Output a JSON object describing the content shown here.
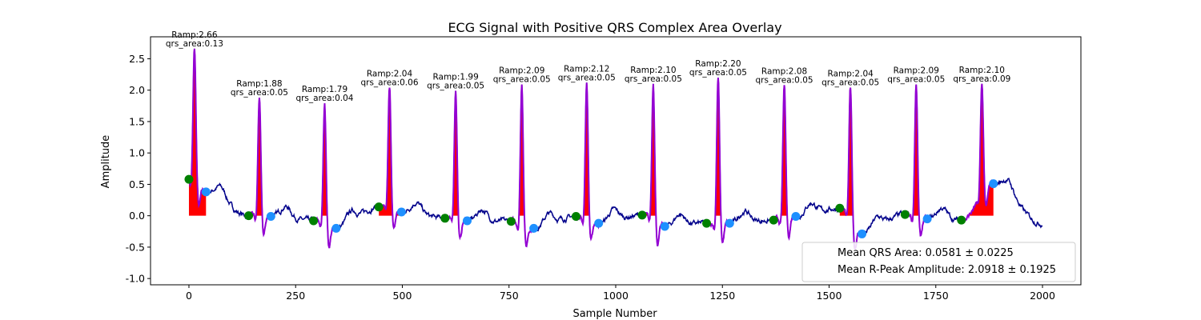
{
  "chart_data": {
    "type": "line",
    "title": "ECG Signal with Positive QRS Complex Area Overlay",
    "xlabel": "Sample Number",
    "ylabel": "Amplitude",
    "xlim": [
      -90,
      2090
    ],
    "ylim": [
      -1.1,
      2.85
    ],
    "xticks": [
      0,
      250,
      500,
      750,
      1000,
      1250,
      1500,
      1750,
      2000
    ],
    "yticks": [
      -1.0,
      -0.5,
      0.0,
      0.5,
      1.0,
      1.5,
      2.0,
      2.5
    ],
    "grid": false,
    "colors": {
      "signal": "#00008b",
      "qrs_segment": "#9400d3",
      "qrs_area": "#ff0000",
      "onset_marker": "#008000",
      "offset_marker": "#1e90ff"
    },
    "beats": [
      {
        "onset": 0,
        "onset_amp": 0.58,
        "peak": 13,
        "ramp": 2.66,
        "offset": 40,
        "offset_amp": 0.38,
        "label": [
          "Ramp:2.66",
          "qrs_area:0.13"
        ]
      },
      {
        "onset": 140,
        "onset_amp": 0.0,
        "peak": 165,
        "ramp": 1.88,
        "offset": 192,
        "offset_amp": -0.01,
        "label": [
          "Ramp:1.88",
          "qrs_area:0.05"
        ]
      },
      {
        "onset": 292,
        "onset_amp": -0.08,
        "peak": 318,
        "ramp": 1.79,
        "offset": 345,
        "offset_amp": -0.2,
        "label": [
          "Ramp:1.79",
          "qrs_area:0.04"
        ]
      },
      {
        "onset": 445,
        "onset_amp": 0.14,
        "peak": 470,
        "ramp": 2.04,
        "offset": 498,
        "offset_amp": 0.06,
        "label": [
          "Ramp:2.04",
          "qrs_area:0.06"
        ]
      },
      {
        "onset": 600,
        "onset_amp": -0.04,
        "peak": 625,
        "ramp": 1.99,
        "offset": 652,
        "offset_amp": -0.08,
        "label": [
          "Ramp:1.99",
          "qrs_area:0.05"
        ]
      },
      {
        "onset": 755,
        "onset_amp": -0.09,
        "peak": 780,
        "ramp": 2.09,
        "offset": 808,
        "offset_amp": -0.2,
        "label": [
          "Ramp:2.09",
          "qrs_area:0.05"
        ]
      },
      {
        "onset": 907,
        "onset_amp": -0.01,
        "peak": 932,
        "ramp": 2.12,
        "offset": 960,
        "offset_amp": -0.12,
        "label": [
          "Ramp:2.12",
          "qrs_area:0.05"
        ]
      },
      {
        "onset": 1062,
        "onset_amp": 0.01,
        "peak": 1088,
        "ramp": 2.1,
        "offset": 1115,
        "offset_amp": -0.17,
        "label": [
          "Ramp:2.10",
          "qrs_area:0.05"
        ]
      },
      {
        "onset": 1213,
        "onset_amp": -0.12,
        "peak": 1240,
        "ramp": 2.2,
        "offset": 1267,
        "offset_amp": -0.12,
        "label": [
          "Ramp:2.20",
          "qrs_area:0.05"
        ]
      },
      {
        "onset": 1370,
        "onset_amp": -0.07,
        "peak": 1395,
        "ramp": 2.08,
        "offset": 1422,
        "offset_amp": -0.01,
        "label": [
          "Ramp:2.08",
          "qrs_area:0.05"
        ]
      },
      {
        "onset": 1525,
        "onset_amp": 0.12,
        "peak": 1550,
        "ramp": 2.04,
        "offset": 1577,
        "offset_amp": -0.29,
        "label": [
          "Ramp:2.04",
          "qrs_area:0.05"
        ]
      },
      {
        "onset": 1678,
        "onset_amp": 0.02,
        "peak": 1704,
        "ramp": 2.09,
        "offset": 1730,
        "offset_amp": -0.05,
        "label": [
          "Ramp:2.09",
          "qrs_area:0.05"
        ]
      },
      {
        "onset": 1810,
        "onset_amp": -0.07,
        "peak": 1858,
        "ramp": 2.1,
        "offset": 1885,
        "offset_amp": 0.51,
        "label": [
          "Ramp:2.10",
          "qrs_area:0.09"
        ]
      }
    ],
    "legend": {
      "position": "lower right",
      "entries": [
        "Mean QRS Area: 0.0581 ± 0.0225",
        "Mean R-Peak Amplitude: 2.0918 ± 0.1925"
      ]
    }
  }
}
